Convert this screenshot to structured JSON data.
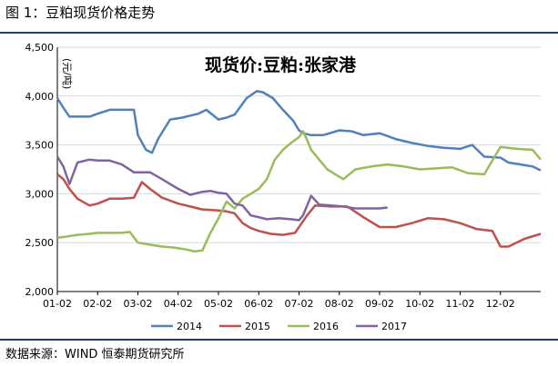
{
  "figure": {
    "title": "图 1：豆粕现货价格走势",
    "source": "数据来源：WIND 恒泰期货研究所"
  },
  "colors": {
    "rule": "#1e3a6e",
    "grid": "#d9d9d9"
  },
  "chart_data": {
    "type": "line",
    "title": "现货价:豆粕:张家港",
    "ylabel": "(元/吨)",
    "xlabel": "",
    "ylim": [
      2000,
      4500
    ],
    "yticks": [
      2000,
      2500,
      3000,
      3500,
      4000,
      4500
    ],
    "ytick_labels": [
      "2,000",
      "2,500",
      "3,000",
      "3,500",
      "4,000",
      "4,500"
    ],
    "xtick_labels": [
      "01-02",
      "02-02",
      "03-02",
      "04-02",
      "05-02",
      "06-02",
      "07-02",
      "08-02",
      "09-02",
      "10-02",
      "11-02",
      "12-02"
    ],
    "x_domain": [
      1,
      13
    ],
    "grid": "horizontal",
    "legend_position": "bottom",
    "series": [
      {
        "name": "2014",
        "color": "#4f81bd",
        "x": [
          1.0,
          1.15,
          1.3,
          1.5,
          1.8,
          2.0,
          2.3,
          2.6,
          2.9,
          3.0,
          3.2,
          3.35,
          3.5,
          3.8,
          4.1,
          4.3,
          4.5,
          4.7,
          5.0,
          5.2,
          5.4,
          5.7,
          5.95,
          6.1,
          6.35,
          6.6,
          6.85,
          7.0,
          7.1,
          7.3,
          7.6,
          8.0,
          8.3,
          8.6,
          9.0,
          9.4,
          9.8,
          10.2,
          10.6,
          11.0,
          11.3,
          11.6,
          12.0,
          12.2,
          12.5,
          12.8,
          13.0
        ],
        "y": [
          3980,
          3880,
          3790,
          3790,
          3790,
          3820,
          3860,
          3860,
          3860,
          3600,
          3450,
          3420,
          3560,
          3760,
          3780,
          3800,
          3820,
          3860,
          3760,
          3780,
          3810,
          3980,
          4050,
          4040,
          3980,
          3860,
          3750,
          3650,
          3620,
          3600,
          3600,
          3650,
          3640,
          3600,
          3620,
          3560,
          3520,
          3490,
          3470,
          3460,
          3500,
          3380,
          3370,
          3320,
          3300,
          3280,
          3240
        ]
      },
      {
        "name": "2015",
        "color": "#c0504d",
        "x": [
          1.0,
          1.15,
          1.3,
          1.5,
          1.8,
          2.0,
          2.3,
          2.6,
          2.9,
          3.1,
          3.3,
          3.6,
          4.0,
          4.3,
          4.6,
          5.0,
          5.2,
          5.4,
          5.6,
          5.8,
          6.0,
          6.3,
          6.6,
          6.9,
          7.2,
          7.4,
          7.8,
          8.2,
          8.6,
          9.0,
          9.4,
          9.8,
          10.2,
          10.6,
          11.0,
          11.4,
          11.8,
          12.0,
          12.2,
          12.6,
          13.0
        ],
        "y": [
          3200,
          3150,
          3050,
          2950,
          2880,
          2900,
          2950,
          2950,
          2960,
          3120,
          3050,
          2960,
          2900,
          2870,
          2840,
          2830,
          2820,
          2800,
          2700,
          2650,
          2620,
          2590,
          2580,
          2600,
          2780,
          2880,
          2870,
          2870,
          2760,
          2660,
          2660,
          2700,
          2750,
          2740,
          2700,
          2640,
          2620,
          2460,
          2460,
          2540,
          2590
        ]
      },
      {
        "name": "2016",
        "color": "#9bbb59",
        "x": [
          1.0,
          1.2,
          1.5,
          1.8,
          2.0,
          2.3,
          2.6,
          2.8,
          3.0,
          3.3,
          3.6,
          3.9,
          4.2,
          4.4,
          4.6,
          4.8,
          5.0,
          5.2,
          5.4,
          5.6,
          5.8,
          6.0,
          6.2,
          6.4,
          6.6,
          6.8,
          7.0,
          7.1,
          7.2,
          7.3,
          7.5,
          7.7,
          7.9,
          8.1,
          8.4,
          8.8,
          9.2,
          9.6,
          10.0,
          10.4,
          10.8,
          11.2,
          11.6,
          11.8,
          12.0,
          12.4,
          12.8,
          13.0
        ],
        "y": [
          2550,
          2560,
          2580,
          2590,
          2600,
          2600,
          2600,
          2610,
          2500,
          2480,
          2460,
          2450,
          2430,
          2410,
          2420,
          2600,
          2750,
          2920,
          2850,
          2950,
          3000,
          3050,
          3150,
          3350,
          3450,
          3520,
          3580,
          3640,
          3550,
          3450,
          3350,
          3250,
          3200,
          3150,
          3250,
          3280,
          3300,
          3280,
          3250,
          3260,
          3270,
          3210,
          3200,
          3340,
          3480,
          3460,
          3450,
          3350
        ]
      },
      {
        "name": "2017",
        "color": "#8064a2",
        "x": [
          1.0,
          1.15,
          1.3,
          1.5,
          1.8,
          2.0,
          2.3,
          2.6,
          2.9,
          3.1,
          3.3,
          3.6,
          4.0,
          4.3,
          4.6,
          4.8,
          5.0,
          5.2,
          5.4,
          5.6,
          5.8,
          6.0,
          6.2,
          6.5,
          6.8,
          7.0,
          7.1,
          7.3,
          7.5,
          7.8,
          8.1,
          8.4,
          8.7,
          9.0,
          9.2
        ],
        "y": [
          3380,
          3280,
          3100,
          3320,
          3350,
          3340,
          3340,
          3300,
          3220,
          3220,
          3220,
          3150,
          3050,
          2990,
          3020,
          3030,
          3010,
          3000,
          2900,
          2880,
          2780,
          2760,
          2740,
          2750,
          2740,
          2730,
          2780,
          2980,
          2890,
          2880,
          2870,
          2850,
          2850,
          2850,
          2860
        ]
      }
    ]
  }
}
